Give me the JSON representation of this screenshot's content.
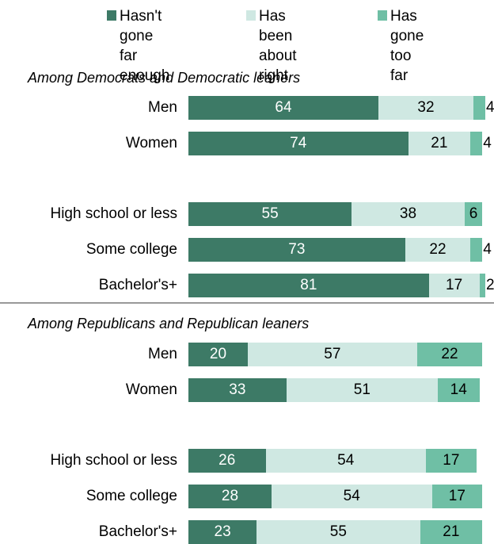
{
  "colors": {
    "hasnt_gone_far_enough": "#3d7a66",
    "been_about_right": "#cfe8e2",
    "gone_too_far": "#6fbfa5",
    "dark_label_text": "#ffffff",
    "light_label_text": "#000000"
  },
  "chart_data": {
    "type": "bar",
    "orientation": "horizontal",
    "stacked": true,
    "legend": {
      "placement": "top",
      "entries": [
        "Hasn't gone\nfar enough",
        "Has been\nabout right",
        "Has gone\ntoo far"
      ]
    },
    "series": [
      {
        "name": "Hasn't gone far enough",
        "color_key": "hasnt_gone_far_enough"
      },
      {
        "name": "Has been about right",
        "color_key": "been_about_right"
      },
      {
        "name": "Has gone too far",
        "color_key": "gone_too_far"
      }
    ],
    "groups": [
      {
        "title": "Among Democrats and Democratic leaners",
        "rows": [
          {
            "label": "Men",
            "values": [
              64,
              32,
              4
            ]
          },
          {
            "label": "Women",
            "values": [
              74,
              21,
              4
            ]
          },
          {
            "label": "High school or less",
            "values": [
              55,
              38,
              6
            ]
          },
          {
            "label": "Some college",
            "values": [
              73,
              22,
              4
            ]
          },
          {
            "label": "Bachelor's+",
            "values": [
              81,
              17,
              2
            ]
          }
        ]
      },
      {
        "title": "Among Republicans and Republican leaners",
        "rows": [
          {
            "label": "Men",
            "values": [
              20,
              57,
              22
            ]
          },
          {
            "label": "Women",
            "values": [
              33,
              51,
              14
            ]
          },
          {
            "label": "High school or less",
            "values": [
              26,
              54,
              17
            ]
          },
          {
            "label": "Some college",
            "values": [
              28,
              54,
              17
            ]
          },
          {
            "label": "Bachelor's+",
            "values": [
              23,
              55,
              21
            ]
          }
        ]
      }
    ],
    "xlim": [
      0,
      100
    ],
    "grid": false
  }
}
